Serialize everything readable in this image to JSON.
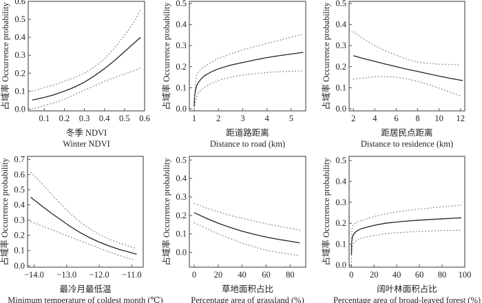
{
  "chart_data": [
    {
      "type": "line",
      "title": "",
      "xlabel_cn": "冬季 NDVI",
      "xlabel_en": "Winter NDVI",
      "ylabel": "占域率 Occurrence probability",
      "xlim": [
        0.02,
        0.6
      ],
      "ylim": [
        -0.01,
        0.6
      ],
      "xticks": [
        0.1,
        0.2,
        0.3,
        0.4,
        0.5,
        0.6
      ],
      "xtick_labels": [
        "0.1",
        "0.2",
        "0.3",
        "0.4",
        "0.5",
        "0.6"
      ],
      "yticks": [
        0.0,
        0.1,
        0.2,
        0.3,
        0.4,
        0.5,
        0.6
      ],
      "ytick_labels": [
        "0.0",
        "0.1",
        "0.2",
        "0.3",
        "0.4",
        "0.5",
        "0.6"
      ],
      "series": [
        {
          "name": "fit",
          "style": "solid",
          "x": [
            0.04,
            0.1,
            0.15,
            0.2,
            0.25,
            0.3,
            0.35,
            0.4,
            0.45,
            0.5,
            0.55,
            0.58
          ],
          "y": [
            0.05,
            0.065,
            0.08,
            0.1,
            0.122,
            0.15,
            0.185,
            0.225,
            0.27,
            0.32,
            0.37,
            0.4
          ]
        },
        {
          "name": "upper",
          "style": "dotted",
          "x": [
            0.04,
            0.1,
            0.15,
            0.2,
            0.25,
            0.3,
            0.35,
            0.4,
            0.45,
            0.5,
            0.55,
            0.58
          ],
          "y": [
            0.1,
            0.12,
            0.135,
            0.155,
            0.175,
            0.2,
            0.235,
            0.28,
            0.34,
            0.41,
            0.49,
            0.555
          ]
        },
        {
          "name": "lower",
          "style": "dotted",
          "x": [
            0.04,
            0.1,
            0.15,
            0.2,
            0.25,
            0.3,
            0.35,
            0.4,
            0.45,
            0.5,
            0.55,
            0.58
          ],
          "y": [
            0.0,
            0.02,
            0.035,
            0.055,
            0.08,
            0.105,
            0.13,
            0.155,
            0.175,
            0.195,
            0.215,
            0.23
          ]
        }
      ]
    },
    {
      "type": "line",
      "title": "",
      "xlabel_cn": "距道路距离",
      "xlabel_en": "Distance to road (km)",
      "ylabel": "占域率 Occurrence probability",
      "xlim": [
        0.8,
        5.6
      ],
      "ylim": [
        -0.01,
        0.51
      ],
      "xticks": [
        1,
        2,
        3,
        4,
        5
      ],
      "xtick_labels": [
        "1",
        "2",
        "3",
        "4",
        "5"
      ],
      "yticks": [
        0.0,
        0.1,
        0.2,
        0.3,
        0.4,
        0.5
      ],
      "ytick_labels": [
        "0.0",
        "0.1",
        "0.2",
        "0.3",
        "0.4",
        "0.5"
      ],
      "series": [
        {
          "name": "fit",
          "style": "solid",
          "x": [
            1.0,
            1.02,
            1.05,
            1.1,
            1.2,
            1.4,
            1.7,
            2.0,
            2.5,
            3.0,
            3.5,
            4.0,
            4.5,
            5.0,
            5.5
          ],
          "y": [
            0.01,
            0.06,
            0.085,
            0.11,
            0.13,
            0.155,
            0.175,
            0.19,
            0.207,
            0.22,
            0.232,
            0.243,
            0.252,
            0.26,
            0.268
          ]
        },
        {
          "name": "upper",
          "style": "dotted",
          "x": [
            1.0,
            1.05,
            1.1,
            1.2,
            1.4,
            1.7,
            2.0,
            2.5,
            3.0,
            3.5,
            4.0,
            4.5,
            5.0,
            5.5
          ],
          "y": [
            0.04,
            0.12,
            0.16,
            0.18,
            0.2,
            0.22,
            0.24,
            0.26,
            0.28,
            0.295,
            0.31,
            0.325,
            0.34,
            0.355
          ]
        },
        {
          "name": "lower",
          "style": "dotted",
          "x": [
            1.0,
            1.05,
            1.1,
            1.2,
            1.4,
            1.7,
            2.0,
            2.5,
            3.0,
            3.5,
            4.0,
            4.5,
            5.0,
            5.5
          ],
          "y": [
            0.0,
            0.03,
            0.055,
            0.08,
            0.1,
            0.12,
            0.135,
            0.15,
            0.16,
            0.167,
            0.172,
            0.176,
            0.178,
            0.18
          ]
        }
      ]
    },
    {
      "type": "line",
      "title": "",
      "xlabel_cn": "距居民点距离",
      "xlabel_en": "Distance to residence (km)",
      "ylabel": "占域率 Occurrence probability",
      "xlim": [
        1.6,
        12.4
      ],
      "ylim": [
        -0.01,
        0.51
      ],
      "xticks": [
        2,
        4,
        6,
        8,
        10,
        12
      ],
      "xtick_labels": [
        "2",
        "4",
        "6",
        "8",
        "10",
        "12"
      ],
      "yticks": [
        0.0,
        0.1,
        0.2,
        0.3,
        0.4,
        0.5
      ],
      "ytick_labels": [
        "0.0",
        "0.1",
        "0.2",
        "0.3",
        "0.4",
        "0.5"
      ],
      "series": [
        {
          "name": "fit",
          "style": "solid",
          "x": [
            2,
            3,
            4,
            5,
            6,
            7,
            8,
            9,
            10,
            11,
            12.2
          ],
          "y": [
            0.252,
            0.238,
            0.225,
            0.212,
            0.2,
            0.188,
            0.177,
            0.166,
            0.155,
            0.145,
            0.134
          ]
        },
        {
          "name": "upper",
          "style": "dotted",
          "x": [
            2,
            3,
            4,
            5,
            6,
            7,
            8,
            9,
            10,
            11,
            12
          ],
          "y": [
            0.365,
            0.33,
            0.3,
            0.275,
            0.255,
            0.235,
            0.222,
            0.215,
            0.212,
            0.21,
            0.208
          ]
        },
        {
          "name": "lower",
          "style": "dotted",
          "x": [
            2,
            3,
            4,
            5,
            6,
            7,
            8,
            9,
            10,
            11,
            12
          ],
          "y": [
            0.14,
            0.147,
            0.152,
            0.153,
            0.15,
            0.142,
            0.13,
            0.115,
            0.098,
            0.08,
            0.06
          ]
        }
      ]
    },
    {
      "type": "line",
      "title": "",
      "xlabel_cn": "最冷月最低温",
      "xlabel_en": "Minimum temperature of coldest month (℃)",
      "ylabel": "占域率 Occurrence probability",
      "xlim": [
        -14.2,
        -10.65
      ],
      "ylim": [
        -0.01,
        0.72
      ],
      "xticks": [
        -14.0,
        -13.0,
        -12.0,
        -11.0
      ],
      "xtick_labels": [
        "−14.0",
        "−13.0",
        "−12.0",
        "−11.0"
      ],
      "yticks": [
        0.0,
        0.1,
        0.2,
        0.3,
        0.4,
        0.5,
        0.6,
        0.7
      ],
      "ytick_labels": [
        "0.0",
        "0.1",
        "0.2",
        "0.3",
        "0.4",
        "0.5",
        "0.6",
        "0.7"
      ],
      "series": [
        {
          "name": "fit",
          "style": "solid",
          "x": [
            -14.1,
            -13.8,
            -13.5,
            -13.2,
            -12.9,
            -12.6,
            -12.3,
            -12.0,
            -11.7,
            -11.4,
            -11.1,
            -10.85
          ],
          "y": [
            0.45,
            0.4,
            0.35,
            0.305,
            0.26,
            0.22,
            0.185,
            0.155,
            0.13,
            0.108,
            0.09,
            0.075
          ]
        },
        {
          "name": "upper",
          "style": "dotted",
          "x": [
            -14.1,
            -13.8,
            -13.5,
            -13.2,
            -12.9,
            -12.6,
            -12.3,
            -12.0,
            -11.7,
            -11.4,
            -11.1,
            -10.9
          ],
          "y": [
            0.615,
            0.55,
            0.48,
            0.41,
            0.345,
            0.29,
            0.245,
            0.205,
            0.175,
            0.15,
            0.13,
            0.115
          ]
        },
        {
          "name": "lower",
          "style": "dotted",
          "x": [
            -14.1,
            -13.8,
            -13.5,
            -13.2,
            -12.9,
            -12.6,
            -12.3,
            -12.0,
            -11.7,
            -11.4,
            -11.1,
            -10.9
          ],
          "y": [
            0.29,
            0.265,
            0.24,
            0.215,
            0.19,
            0.165,
            0.14,
            0.115,
            0.09,
            0.068,
            0.048,
            0.035
          ]
        }
      ]
    },
    {
      "type": "line",
      "title": "",
      "xlabel_cn": "草地面积占比",
      "xlabel_en": "Percentage area of grassland (%)",
      "ylabel": "占域率 Occurrence probability",
      "xlim": [
        -4,
        93
      ],
      "ylim": [
        -0.08,
        0.52
      ],
      "xticks": [
        0,
        20,
        40,
        60,
        80
      ],
      "xtick_labels": [
        "0",
        "20",
        "40",
        "60",
        "80"
      ],
      "yticks": [
        0.0,
        0.1,
        0.2,
        0.3,
        0.4,
        0.5
      ],
      "ytick_labels": [
        "0.0",
        "0.1",
        "0.2",
        "0.3",
        "0.4",
        "0.5"
      ],
      "series": [
        {
          "name": "fit",
          "style": "solid",
          "x": [
            0,
            10,
            20,
            30,
            40,
            50,
            60,
            70,
            80,
            88
          ],
          "y": [
            0.215,
            0.185,
            0.158,
            0.135,
            0.115,
            0.098,
            0.083,
            0.071,
            0.06,
            0.052
          ]
        },
        {
          "name": "upper",
          "style": "dotted",
          "x": [
            0,
            10,
            20,
            30,
            40,
            50,
            60,
            70,
            80,
            88
          ],
          "y": [
            0.265,
            0.24,
            0.22,
            0.2,
            0.185,
            0.17,
            0.155,
            0.142,
            0.13,
            0.12
          ]
        },
        {
          "name": "lower",
          "style": "dotted",
          "x": [
            0,
            10,
            20,
            30,
            40,
            50,
            60,
            70,
            80,
            88
          ],
          "y": [
            0.16,
            0.13,
            0.1,
            0.075,
            0.05,
            0.03,
            0.012,
            0.0,
            -0.01,
            -0.018
          ]
        }
      ]
    },
    {
      "type": "line",
      "title": "",
      "xlabel_cn": "阔叶林面积占比",
      "xlabel_en": "Percentage area of broad-leaved forest (%)",
      "ylabel": "占域率 Occurrence probability",
      "xlim": [
        -2,
        100
      ],
      "ylim": [
        -0.01,
        0.52
      ],
      "xticks": [
        0,
        20,
        40,
        60,
        80,
        100
      ],
      "xtick_labels": [
        "0",
        "20",
        "40",
        "60",
        "80",
        "100"
      ],
      "yticks": [
        0.0,
        0.1,
        0.2,
        0.3,
        0.4,
        0.5
      ],
      "ytick_labels": [
        "0.0",
        "0.1",
        "0.2",
        "0.3",
        "0.4",
        "0.5"
      ],
      "series": [
        {
          "name": "fit",
          "style": "solid",
          "x": [
            0,
            0.2,
            0.5,
            1,
            2,
            4,
            7,
            10,
            20,
            30,
            40,
            50,
            60,
            70,
            80,
            90,
            97
          ],
          "y": [
            0.05,
            0.1,
            0.12,
            0.135,
            0.148,
            0.16,
            0.17,
            0.176,
            0.19,
            0.2,
            0.206,
            0.211,
            0.215,
            0.218,
            0.221,
            0.224,
            0.226
          ]
        },
        {
          "name": "upper",
          "style": "dotted",
          "x": [
            0,
            0.5,
            1,
            2,
            5,
            10,
            20,
            30,
            40,
            50,
            60,
            70,
            80,
            90,
            97
          ],
          "y": [
            0.1,
            0.17,
            0.185,
            0.195,
            0.205,
            0.215,
            0.232,
            0.245,
            0.255,
            0.262,
            0.268,
            0.273,
            0.278,
            0.283,
            0.287
          ]
        },
        {
          "name": "lower",
          "style": "dotted",
          "x": [
            0,
            0.5,
            1,
            2,
            5,
            10,
            20,
            30,
            40,
            50,
            60,
            70,
            80,
            90,
            97
          ],
          "y": [
            0.0,
            0.07,
            0.09,
            0.105,
            0.12,
            0.13,
            0.142,
            0.15,
            0.155,
            0.158,
            0.161,
            0.163,
            0.165,
            0.166,
            0.167
          ]
        }
      ]
    }
  ]
}
